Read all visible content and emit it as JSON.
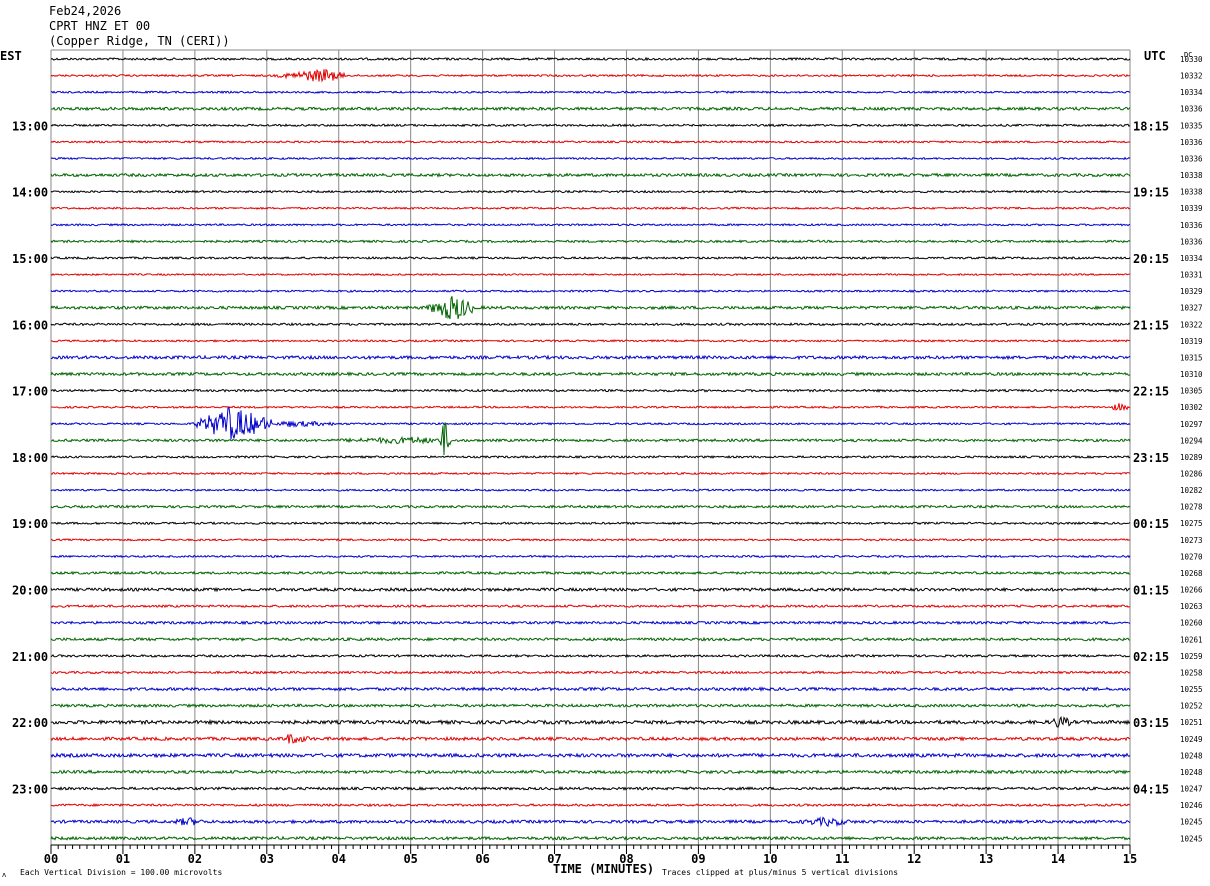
{
  "header": {
    "date": "Feb24,2026",
    "station": "CPRT HNZ ET 00",
    "location": "(Copper Ridge, TN (CERI))"
  },
  "axes": {
    "left_timezone": "EST",
    "right_timezone": "UTC",
    "dc_label": "DC",
    "x_title": "TIME (MINUTES)"
  },
  "footer": {
    "scale_note": "Each Vertical Division =  100.00 microvolts",
    "clip_note": "Traces clipped at plus/minus 5 vertical divisions"
  },
  "colors": {
    "trace_cycle": [
      "#000000",
      "#e00000",
      "#0000cc",
      "#006400"
    ],
    "grid": "#888888"
  },
  "chart_data": {
    "type": "line",
    "subtype": "helicorder",
    "x_ticks": [
      "00",
      "01",
      "02",
      "03",
      "04",
      "05",
      "06",
      "07",
      "08",
      "09",
      "10",
      "11",
      "12",
      "13",
      "14",
      "15"
    ],
    "xlim": [
      0,
      15
    ],
    "rows_per_hour": 4,
    "left_hour_labels": [
      "13:00",
      "14:00",
      "15:00",
      "16:00",
      "17:00",
      "18:00",
      "19:00",
      "20:00",
      "21:00",
      "22:00",
      "23:00"
    ],
    "right_hour_labels": [
      "18:15",
      "19:15",
      "20:15",
      "21:15",
      "22:15",
      "23:15",
      "00:15",
      "01:15",
      "02:15",
      "03:15",
      "04:15"
    ],
    "first_labeled_row": 4,
    "dc_values": [
      "10330",
      "10332",
      "10334",
      "10336",
      "10335",
      "10336",
      "10336",
      "10338",
      "10338",
      "10339",
      "10336",
      "10336",
      "10334",
      "10331",
      "10329",
      "10327",
      "10322",
      "10319",
      "10315",
      "10310",
      "10305",
      "10302",
      "10297",
      "10294",
      "10289",
      "10286",
      "10282",
      "10278",
      "10275",
      "10273",
      "10270",
      "10268",
      "10266",
      "10263",
      "10260",
      "10261",
      "10259",
      "10258",
      "10255",
      "10252",
      "10251",
      "10249",
      "10248",
      "10248",
      "10247",
      "10246",
      "10245",
      "10245"
    ],
    "noise_levels": [
      1.2,
      1.0,
      1.0,
      1.6,
      1.1,
      1.0,
      1.0,
      1.6,
      1.1,
      1.0,
      1.0,
      1.2,
      1.1,
      0.9,
      1.0,
      1.6,
      1.2,
      1.0,
      1.7,
      1.6,
      1.2,
      1.0,
      1.0,
      1.4,
      1.1,
      1.0,
      1.0,
      1.3,
      1.1,
      1.0,
      1.0,
      1.3,
      1.6,
      1.2,
      1.4,
      1.5,
      1.2,
      1.2,
      1.6,
      1.5,
      1.9,
      1.7,
      1.9,
      1.6,
      1.4,
      1.2,
      1.6,
      1.6
    ],
    "events": [
      {
        "row": 1,
        "start_min": 3.1,
        "end_min": 4.1,
        "peak_min": 3.8,
        "amplitude_div": 0.4
      },
      {
        "row": 15,
        "start_min": 5.2,
        "end_min": 5.9,
        "peak_min": 5.6,
        "amplitude_div": 0.8
      },
      {
        "row": 22,
        "start_min": 1.95,
        "end_min": 3.1,
        "peak_min": 2.5,
        "amplitude_div": 1.1
      },
      {
        "row": 22,
        "start_min": 3.1,
        "end_min": 4.0,
        "peak_min": 3.3,
        "amplitude_div": 0.15
      },
      {
        "row": 23,
        "start_min": 4.0,
        "end_min": 5.5,
        "peak_min": 5.0,
        "amplitude_div": 0.15
      },
      {
        "row": 23,
        "start_min": 5.4,
        "end_min": 5.55,
        "peak_min": 5.47,
        "amplitude_div": 1.3
      },
      {
        "row": 41,
        "start_min": 3.2,
        "end_min": 3.6,
        "peak_min": 3.3,
        "amplitude_div": 0.25
      },
      {
        "row": 46,
        "start_min": 1.7,
        "end_min": 2.1,
        "peak_min": 1.9,
        "amplitude_div": 0.2
      },
      {
        "row": 46,
        "start_min": 10.4,
        "end_min": 11.1,
        "peak_min": 10.8,
        "amplitude_div": 0.2
      },
      {
        "row": 40,
        "start_min": 13.9,
        "end_min": 14.2,
        "peak_min": 14.0,
        "amplitude_div": 0.3
      },
      {
        "row": 21,
        "start_min": 14.7,
        "end_min": 15.0,
        "peak_min": 14.85,
        "amplitude_div": 0.2
      }
    ]
  }
}
